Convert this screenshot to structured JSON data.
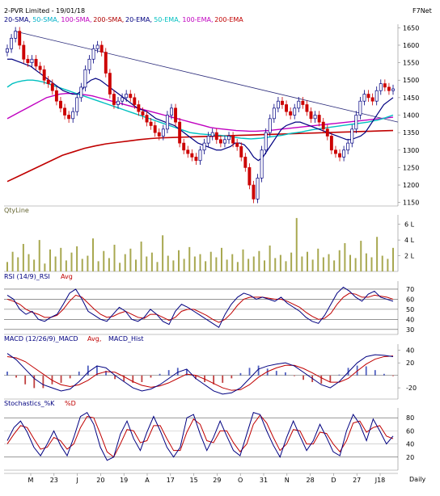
{
  "header": {
    "title": "2-PVR Limited - 19/01/18",
    "brand": "F7Net",
    "legend": [
      {
        "label": "20-SMA",
        "color": "#000080"
      },
      {
        "label": "50-SMA",
        "color": "#00b0c8"
      },
      {
        "label": "100-SMA",
        "color": "#c000c0"
      },
      {
        "label": "200-SMA",
        "color": "#b00000"
      },
      {
        "label": "20-EMA",
        "color": "#000080"
      },
      {
        "label": "50-EMA",
        "color": "#00c0c0"
      },
      {
        "label": "100-EMA",
        "color": "#c000c0"
      },
      {
        "label": "200-EMA",
        "color": "#c00000"
      }
    ]
  },
  "panels": {
    "qty": {
      "title": "QtyLine",
      "ticks": [
        "6 L",
        "4 L",
        "2 L"
      ]
    },
    "rsi": {
      "title_a": "RSI (14/9)_RSI",
      "title_b": "Avg",
      "ticks": [
        "70",
        "60",
        "50",
        "40",
        "30"
      ]
    },
    "macd": {
      "title_a": "MACD (12/26/9)_MACD",
      "title_b": "Avg,",
      "title_c": "MACD_Hist",
      "ticks": [
        "40",
        "20",
        "-20"
      ]
    },
    "stoch": {
      "title_a": "Stochastics_%K",
      "title_b": "%D",
      "ticks": [
        "80",
        "60",
        "40",
        "20"
      ]
    }
  },
  "xaxis": {
    "labels": [
      "M",
      "23",
      "J",
      "20",
      "19",
      "A",
      "17",
      "15",
      "29",
      "O",
      "31",
      "N",
      "28",
      "D",
      "27",
      "J18"
    ],
    "period": "Daily"
  },
  "chart_data": {
    "type": "candlestick",
    "price": {
      "yticks": [
        1650,
        1600,
        1550,
        1500,
        1450,
        1400,
        1350,
        1300,
        1250,
        1200,
        1150
      ],
      "close": [
        1590,
        1620,
        1640,
        1600,
        1560,
        1550,
        1560,
        1540,
        1530,
        1500,
        1490,
        1470,
        1440,
        1420,
        1400,
        1390,
        1410,
        1450,
        1480,
        1530,
        1560,
        1590,
        1600,
        1580,
        1520,
        1460,
        1430,
        1440,
        1450,
        1460,
        1450,
        1430,
        1410,
        1400,
        1380,
        1370,
        1350,
        1340,
        1360,
        1400,
        1420,
        1380,
        1320,
        1300,
        1290,
        1280,
        1270,
        1300,
        1320,
        1340,
        1350,
        1330,
        1320,
        1330,
        1340,
        1320,
        1310,
        1280,
        1250,
        1200,
        1160,
        1220,
        1300,
        1350,
        1390,
        1420,
        1440,
        1430,
        1410,
        1400,
        1420,
        1440,
        1430,
        1410,
        1390,
        1400,
        1380,
        1360,
        1340,
        1300,
        1290,
        1280,
        1300,
        1320,
        1360,
        1400,
        1440,
        1460,
        1450,
        1440,
        1470,
        1490,
        1480,
        1470,
        1475
      ],
      "sma20": [
        1560,
        1560,
        1555,
        1550,
        1545,
        1540,
        1530,
        1520,
        1510,
        1500,
        1490,
        1480,
        1470,
        1465,
        1460,
        1460,
        1470,
        1490,
        1500,
        1505,
        1500,
        1490,
        1480,
        1470,
        1460,
        1450,
        1440,
        1430,
        1420,
        1415,
        1410,
        1400,
        1390,
        1385,
        1380,
        1375,
        1370,
        1360,
        1350,
        1340,
        1330,
        1320,
        1315,
        1310,
        1305,
        1300,
        1300,
        1305,
        1310,
        1320,
        1320,
        1315,
        1300,
        1280,
        1270,
        1280,
        1300,
        1320,
        1340,
        1360,
        1370,
        1375,
        1380,
        1380,
        1375,
        1370,
        1365,
        1360,
        1355,
        1350,
        1345,
        1340,
        1335,
        1330,
        1330,
        1335,
        1340,
        1350,
        1370,
        1390,
        1410,
        1430,
        1440,
        1450
      ],
      "sma50": [
        1480,
        1490,
        1495,
        1498,
        1500,
        1500,
        1498,
        1495,
        1490,
        1485,
        1480,
        1475,
        1470,
        1465,
        1460,
        1455,
        1450,
        1445,
        1440,
        1435,
        1430,
        1425,
        1420,
        1415,
        1410,
        1405,
        1400,
        1395,
        1390,
        1385,
        1380,
        1375,
        1370,
        1365,
        1360,
        1355,
        1350,
        1348,
        1346,
        1345,
        1344,
        1343,
        1342,
        1340,
        1338,
        1336,
        1334,
        1333,
        1332,
        1333,
        1334,
        1336,
        1338,
        1340,
        1342,
        1345,
        1348,
        1350,
        1352,
        1355,
        1358,
        1360,
        1362,
        1364,
        1366,
        1368,
        1370,
        1372,
        1374,
        1376,
        1378,
        1380,
        1383,
        1386,
        1390,
        1395,
        1400
      ],
      "sma100": [
        1390,
        1400,
        1410,
        1420,
        1430,
        1440,
        1450,
        1455,
        1460,
        1462,
        1462,
        1460,
        1458,
        1455,
        1450,
        1445,
        1440,
        1435,
        1430,
        1425,
        1420,
        1415,
        1410,
        1405,
        1400,
        1395,
        1390,
        1385,
        1380,
        1375,
        1370,
        1365,
        1362,
        1360,
        1358,
        1356,
        1355,
        1354,
        1354,
        1355,
        1356,
        1358,
        1360,
        1362,
        1364,
        1366,
        1368,
        1370,
        1372,
        1374,
        1376,
        1378,
        1380,
        1382,
        1384,
        1386,
        1388,
        1390,
        1392,
        1394
      ],
      "sma200": [
        1210,
        1225,
        1240,
        1255,
        1270,
        1285,
        1295,
        1305,
        1312,
        1318,
        1322,
        1326,
        1330,
        1333,
        1335,
        1336,
        1337,
        1338,
        1339,
        1340,
        1341,
        1342,
        1343,
        1344,
        1345,
        1346,
        1347,
        1348,
        1349,
        1350,
        1351,
        1352,
        1353,
        1354,
        1355,
        1356
      ]
    },
    "rsi": {
      "rsi": [
        64,
        60,
        50,
        45,
        48,
        40,
        38,
        42,
        45,
        55,
        66,
        70,
        60,
        48,
        44,
        40,
        38,
        45,
        52,
        48,
        40,
        38,
        42,
        50,
        45,
        38,
        35,
        48,
        55,
        52,
        48,
        44,
        40,
        36,
        32,
        45,
        55,
        62,
        66,
        64,
        60,
        62,
        60,
        58,
        62,
        56,
        52,
        48,
        42,
        38,
        36,
        44,
        55,
        66,
        72,
        68,
        62,
        58,
        65,
        68,
        62,
        60,
        58
      ],
      "avg": [
        60,
        58,
        55,
        50,
        47,
        45,
        42,
        42,
        44,
        50,
        58,
        64,
        62,
        56,
        50,
        45,
        42,
        43,
        46,
        48,
        45,
        42,
        41,
        45,
        45,
        42,
        39,
        42,
        48,
        50,
        50,
        47,
        44,
        40,
        37,
        40,
        46,
        54,
        60,
        62,
        62,
        62,
        61,
        60,
        60,
        58,
        55,
        52,
        47,
        43,
        40,
        41,
        46,
        55,
        62,
        66,
        65,
        62,
        62,
        64,
        63,
        62,
        60
      ]
    },
    "macd": {
      "macd": [
        35,
        25,
        10,
        -5,
        -15,
        -20,
        -25,
        -22,
        -10,
        5,
        15,
        12,
        0,
        -10,
        -20,
        -25,
        -22,
        -15,
        -5,
        5,
        10,
        -5,
        -15,
        -25,
        -30,
        -28,
        -20,
        -5,
        10,
        15,
        18,
        20,
        15,
        5,
        -5,
        -15,
        -20,
        -10,
        5,
        20,
        30,
        33,
        32,
        30
      ],
      "avg": [
        30,
        28,
        22,
        12,
        2,
        -8,
        -15,
        -18,
        -15,
        -8,
        2,
        6,
        5,
        -2,
        -10,
        -16,
        -19,
        -17,
        -12,
        -5,
        2,
        0,
        -6,
        -13,
        -20,
        -24,
        -23,
        -15,
        -3,
        6,
        12,
        16,
        16,
        11,
        4,
        -4,
        -11,
        -11,
        -5,
        7,
        18,
        26,
        30,
        31
      ],
      "yticks": [
        40,
        20,
        -20
      ]
    },
    "stoch": {
      "k": [
        45,
        65,
        75,
        58,
        35,
        22,
        40,
        60,
        38,
        22,
        50,
        82,
        88,
        70,
        35,
        15,
        20,
        55,
        75,
        48,
        30,
        58,
        82,
        60,
        35,
        20,
        35,
        80,
        85,
        55,
        30,
        50,
        75,
        52,
        30,
        22,
        55,
        88,
        85,
        60,
        38,
        20,
        50,
        75,
        52,
        30,
        45,
        70,
        50,
        28,
        22,
        60,
        85,
        70,
        45,
        78,
        60,
        40,
        52
      ],
      "d": [
        40,
        55,
        68,
        65,
        48,
        32,
        35,
        50,
        45,
        32,
        40,
        65,
        82,
        80,
        55,
        28,
        20,
        40,
        62,
        60,
        42,
        45,
        68,
        68,
        48,
        30,
        30,
        58,
        78,
        70,
        45,
        42,
        60,
        60,
        42,
        28,
        40,
        70,
        84,
        72,
        50,
        30,
        40,
        62,
        60,
        40,
        40,
        58,
        56,
        40,
        28,
        45,
        72,
        75,
        58,
        65,
        68,
        52,
        48
      ]
    },
    "qty": {
      "values": [
        1.2,
        2.5,
        1.8,
        3.5,
        2.2,
        1.5,
        4.0,
        1.0,
        2.8,
        1.9,
        3.0,
        1.4,
        2.4,
        3.2,
        1.6,
        2.0,
        4.2,
        1.3,
        2.6,
        1.7,
        3.4,
        1.1,
        2.2,
        2.9,
        1.5,
        3.8,
        1.9,
        2.4,
        1.2,
        4.6,
        2.0,
        1.4,
        2.7,
        1.6,
        3.1,
        1.9,
        2.2,
        1.3,
        2.5,
        1.8,
        3.0,
        1.5,
        2.2,
        1.2,
        2.8,
        1.6,
        1.9,
        2.6,
        1.4,
        3.3,
        1.7,
        2.1,
        1.3,
        2.4,
        6.8,
        1.9,
        2.5,
        1.5,
        2.9,
        1.8,
        2.2,
        1.4,
        2.7,
        3.6,
        2.1,
        1.7,
        3.9,
        2.3,
        1.8,
        4.4,
        2.0,
        1.6,
        3.0
      ]
    }
  }
}
